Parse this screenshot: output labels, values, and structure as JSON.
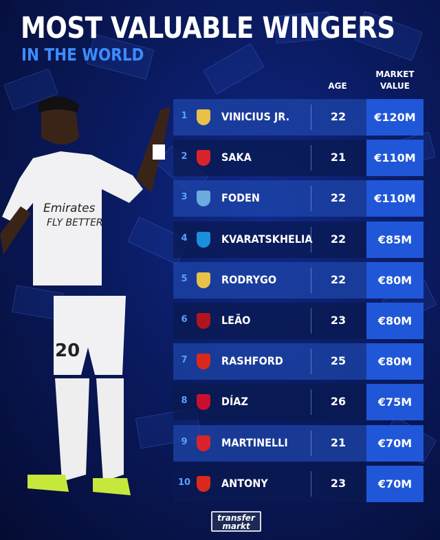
{
  "title": "MOST VALUABLE WINGERS",
  "subtitle": "IN THE WORLD",
  "headers": {
    "age": "AGE",
    "market_value_1": "MARKET",
    "market_value_2": "VALUE"
  },
  "rows": [
    {
      "rank": "1",
      "name": "VINICIUS JR.",
      "club": "real-madrid",
      "age": "22",
      "value": "€120M"
    },
    {
      "rank": "2",
      "name": "SAKA",
      "club": "arsenal",
      "age": "21",
      "value": "€110M"
    },
    {
      "rank": "3",
      "name": "FODEN",
      "club": "manchester-city",
      "age": "22",
      "value": "€110M"
    },
    {
      "rank": "4",
      "name": "KVARATSKHELIA",
      "club": "napoli",
      "age": "22",
      "value": "€85M"
    },
    {
      "rank": "5",
      "name": "RODRYGO",
      "club": "real-madrid",
      "age": "22",
      "value": "€80M"
    },
    {
      "rank": "6",
      "name": "LEÃO",
      "club": "ac-milan",
      "age": "23",
      "value": "€80M"
    },
    {
      "rank": "7",
      "name": "RASHFORD",
      "club": "manchester-united",
      "age": "25",
      "value": "€80M"
    },
    {
      "rank": "8",
      "name": "DÍAZ",
      "club": "liverpool",
      "age": "26",
      "value": "€75M"
    },
    {
      "rank": "9",
      "name": "MARTINELLI",
      "club": "arsenal",
      "age": "21",
      "value": "€70M"
    },
    {
      "rank": "10",
      "name": "ANTONY",
      "club": "manchester-united",
      "age": "23",
      "value": "€70M"
    }
  ],
  "crest_colors": {
    "real-madrid": "#e8c14a",
    "arsenal": "#d8232a",
    "manchester-city": "#6cabdd",
    "napoli": "#1a8fdc",
    "ac-milan": "#b0151d",
    "manchester-united": "#da291c",
    "liverpool": "#c8102e"
  },
  "player_shirt": {
    "sponsor_1": "Emirates",
    "sponsor_2": "FLY BETTER",
    "number": "20"
  },
  "logo": {
    "line1": "transfer",
    "line2": "markt"
  }
}
